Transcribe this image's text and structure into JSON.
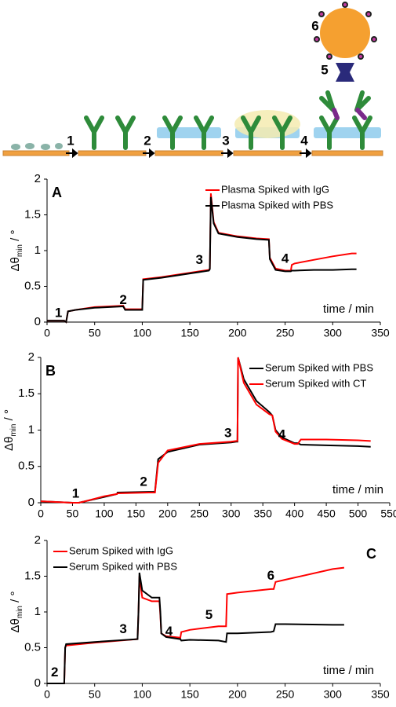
{
  "schematic": {
    "steps": [
      "1",
      "2",
      "3",
      "4"
    ],
    "labels": [
      "5",
      "6"
    ]
  },
  "chart_data": [
    {
      "type": "line",
      "panel_label": "A",
      "x_label": "time / min",
      "y_label": [
        "Δθ",
        "min",
        " / °"
      ],
      "legend": "upper right",
      "annotations": [
        "1",
        "2",
        "3",
        "4"
      ],
      "xlim": [
        0,
        350
      ],
      "xticks": [
        0,
        50,
        100,
        150,
        200,
        250,
        300,
        350
      ],
      "ylim": [
        0,
        2
      ],
      "yticks": [
        0,
        0.5,
        1,
        1.5,
        2
      ],
      "x": [
        0,
        18,
        20,
        22,
        30,
        50,
        80,
        82,
        100,
        101,
        120,
        150,
        170,
        171,
        172,
        175,
        180,
        200,
        220,
        233,
        234,
        240,
        250,
        256,
        257,
        260,
        280,
        300,
        320,
        325
      ],
      "series": [
        {
          "name": "Plasma Spiked with IgG",
          "color": "#ff0000",
          "values": [
            0.02,
            0.02,
            0,
            0.15,
            0.17,
            0.21,
            0.23,
            0.18,
            0.18,
            0.6,
            0.63,
            0.69,
            0.73,
            0.75,
            1.8,
            1.4,
            1.25,
            1.2,
            1.17,
            1.16,
            0.9,
            0.75,
            0.72,
            0.72,
            0.8,
            0.82,
            0.87,
            0.92,
            0.96,
            0.96
          ]
        },
        {
          "name": "Plasma Spiked with PBS",
          "color": "#000000",
          "values": [
            0.02,
            0.02,
            0,
            0.15,
            0.17,
            0.2,
            0.22,
            0.17,
            0.17,
            0.59,
            0.62,
            0.68,
            0.72,
            0.74,
            1.75,
            1.38,
            1.24,
            1.19,
            1.16,
            1.15,
            0.88,
            0.73,
            0.71,
            0.71,
            0.72,
            0.72,
            0.73,
            0.73,
            0.74,
            0.74
          ]
        }
      ]
    },
    {
      "type": "line",
      "panel_label": "B",
      "x_label": "time / min",
      "y_label": [
        "Δθ",
        "min",
        " / °"
      ],
      "legend": "upper right",
      "annotations": [
        "1",
        "2",
        "3",
        "4"
      ],
      "xlim": [
        0,
        550
      ],
      "xticks": [
        0,
        50,
        100,
        150,
        200,
        250,
        300,
        350,
        400,
        450,
        500,
        550
      ],
      "ylim": [
        0,
        2
      ],
      "yticks": [
        0,
        0.5,
        1,
        1.5,
        2
      ],
      "x": [
        0,
        50,
        60,
        70,
        100,
        120,
        121,
        170,
        175,
        180,
        185,
        200,
        250,
        300,
        308,
        310,
        311,
        320,
        340,
        360,
        365,
        370,
        380,
        400,
        405,
        410,
        450,
        500,
        520
      ],
      "series": [
        {
          "name": "Serum Spiked with PBS",
          "color": "#000000",
          "values": [
            0.02,
            0,
            0,
            0.02,
            0.08,
            0.12,
            0.14,
            0.15,
            0.15,
            0.15,
            0.6,
            0.7,
            0.8,
            0.83,
            0.84,
            0.84,
            2,
            1.7,
            1.4,
            1.25,
            1.2,
            1,
            0.9,
            0.82,
            0.82,
            0.8,
            0.79,
            0.78,
            0.77
          ]
        },
        {
          "name": "Serum Spiked with CT",
          "color": "#ff0000",
          "values": [
            0.02,
            0,
            0,
            0.02,
            0.09,
            0.12,
            0.13,
            0.14,
            0.14,
            0.14,
            0.55,
            0.72,
            0.81,
            0.84,
            0.85,
            0.85,
            2,
            1.65,
            1.35,
            1.22,
            1.2,
            0.98,
            0.88,
            0.81,
            0.81,
            0.87,
            0.87,
            0.86,
            0.85
          ]
        }
      ]
    },
    {
      "type": "line",
      "panel_label": "C",
      "x_label": "time / min",
      "y_label": [
        "Δθ",
        "min",
        " / °"
      ],
      "legend": "upper left",
      "annotations": [
        "2",
        "3",
        "4",
        "5",
        "6"
      ],
      "xlim": [
        0,
        350
      ],
      "xticks": [
        0,
        50,
        100,
        150,
        200,
        250,
        300,
        350
      ],
      "ylim": [
        0,
        2
      ],
      "yticks": [
        0,
        0.5,
        1,
        1.5,
        2
      ],
      "x": [
        0,
        18,
        19,
        20,
        50,
        95,
        96,
        97,
        100,
        110,
        118,
        119,
        120,
        125,
        140,
        141,
        150,
        180,
        188,
        189,
        200,
        235,
        238,
        240,
        250,
        300,
        312
      ],
      "series": [
        {
          "name": "Serum Spiked with IgG",
          "color": "#ff0000",
          "values": [
            0,
            0,
            0.5,
            0.53,
            0.57,
            0.62,
            1,
            1.5,
            1.2,
            1.15,
            1.15,
            0.95,
            0.7,
            0.66,
            0.64,
            0.72,
            0.75,
            0.8,
            0.8,
            1.25,
            1.27,
            1.32,
            1.32,
            1.42,
            1.45,
            1.6,
            1.62
          ]
        },
        {
          "name": "Serum Spiked with PBS",
          "color": "#000000",
          "values": [
            0,
            0,
            0.5,
            0.55,
            0.58,
            0.62,
            1,
            1.55,
            1.3,
            1.2,
            1.2,
            1,
            0.7,
            0.65,
            0.62,
            0.6,
            0.61,
            0.6,
            0.58,
            0.7,
            0.7,
            0.72,
            0.73,
            0.83,
            0.83,
            0.82,
            0.82
          ]
        }
      ]
    }
  ]
}
